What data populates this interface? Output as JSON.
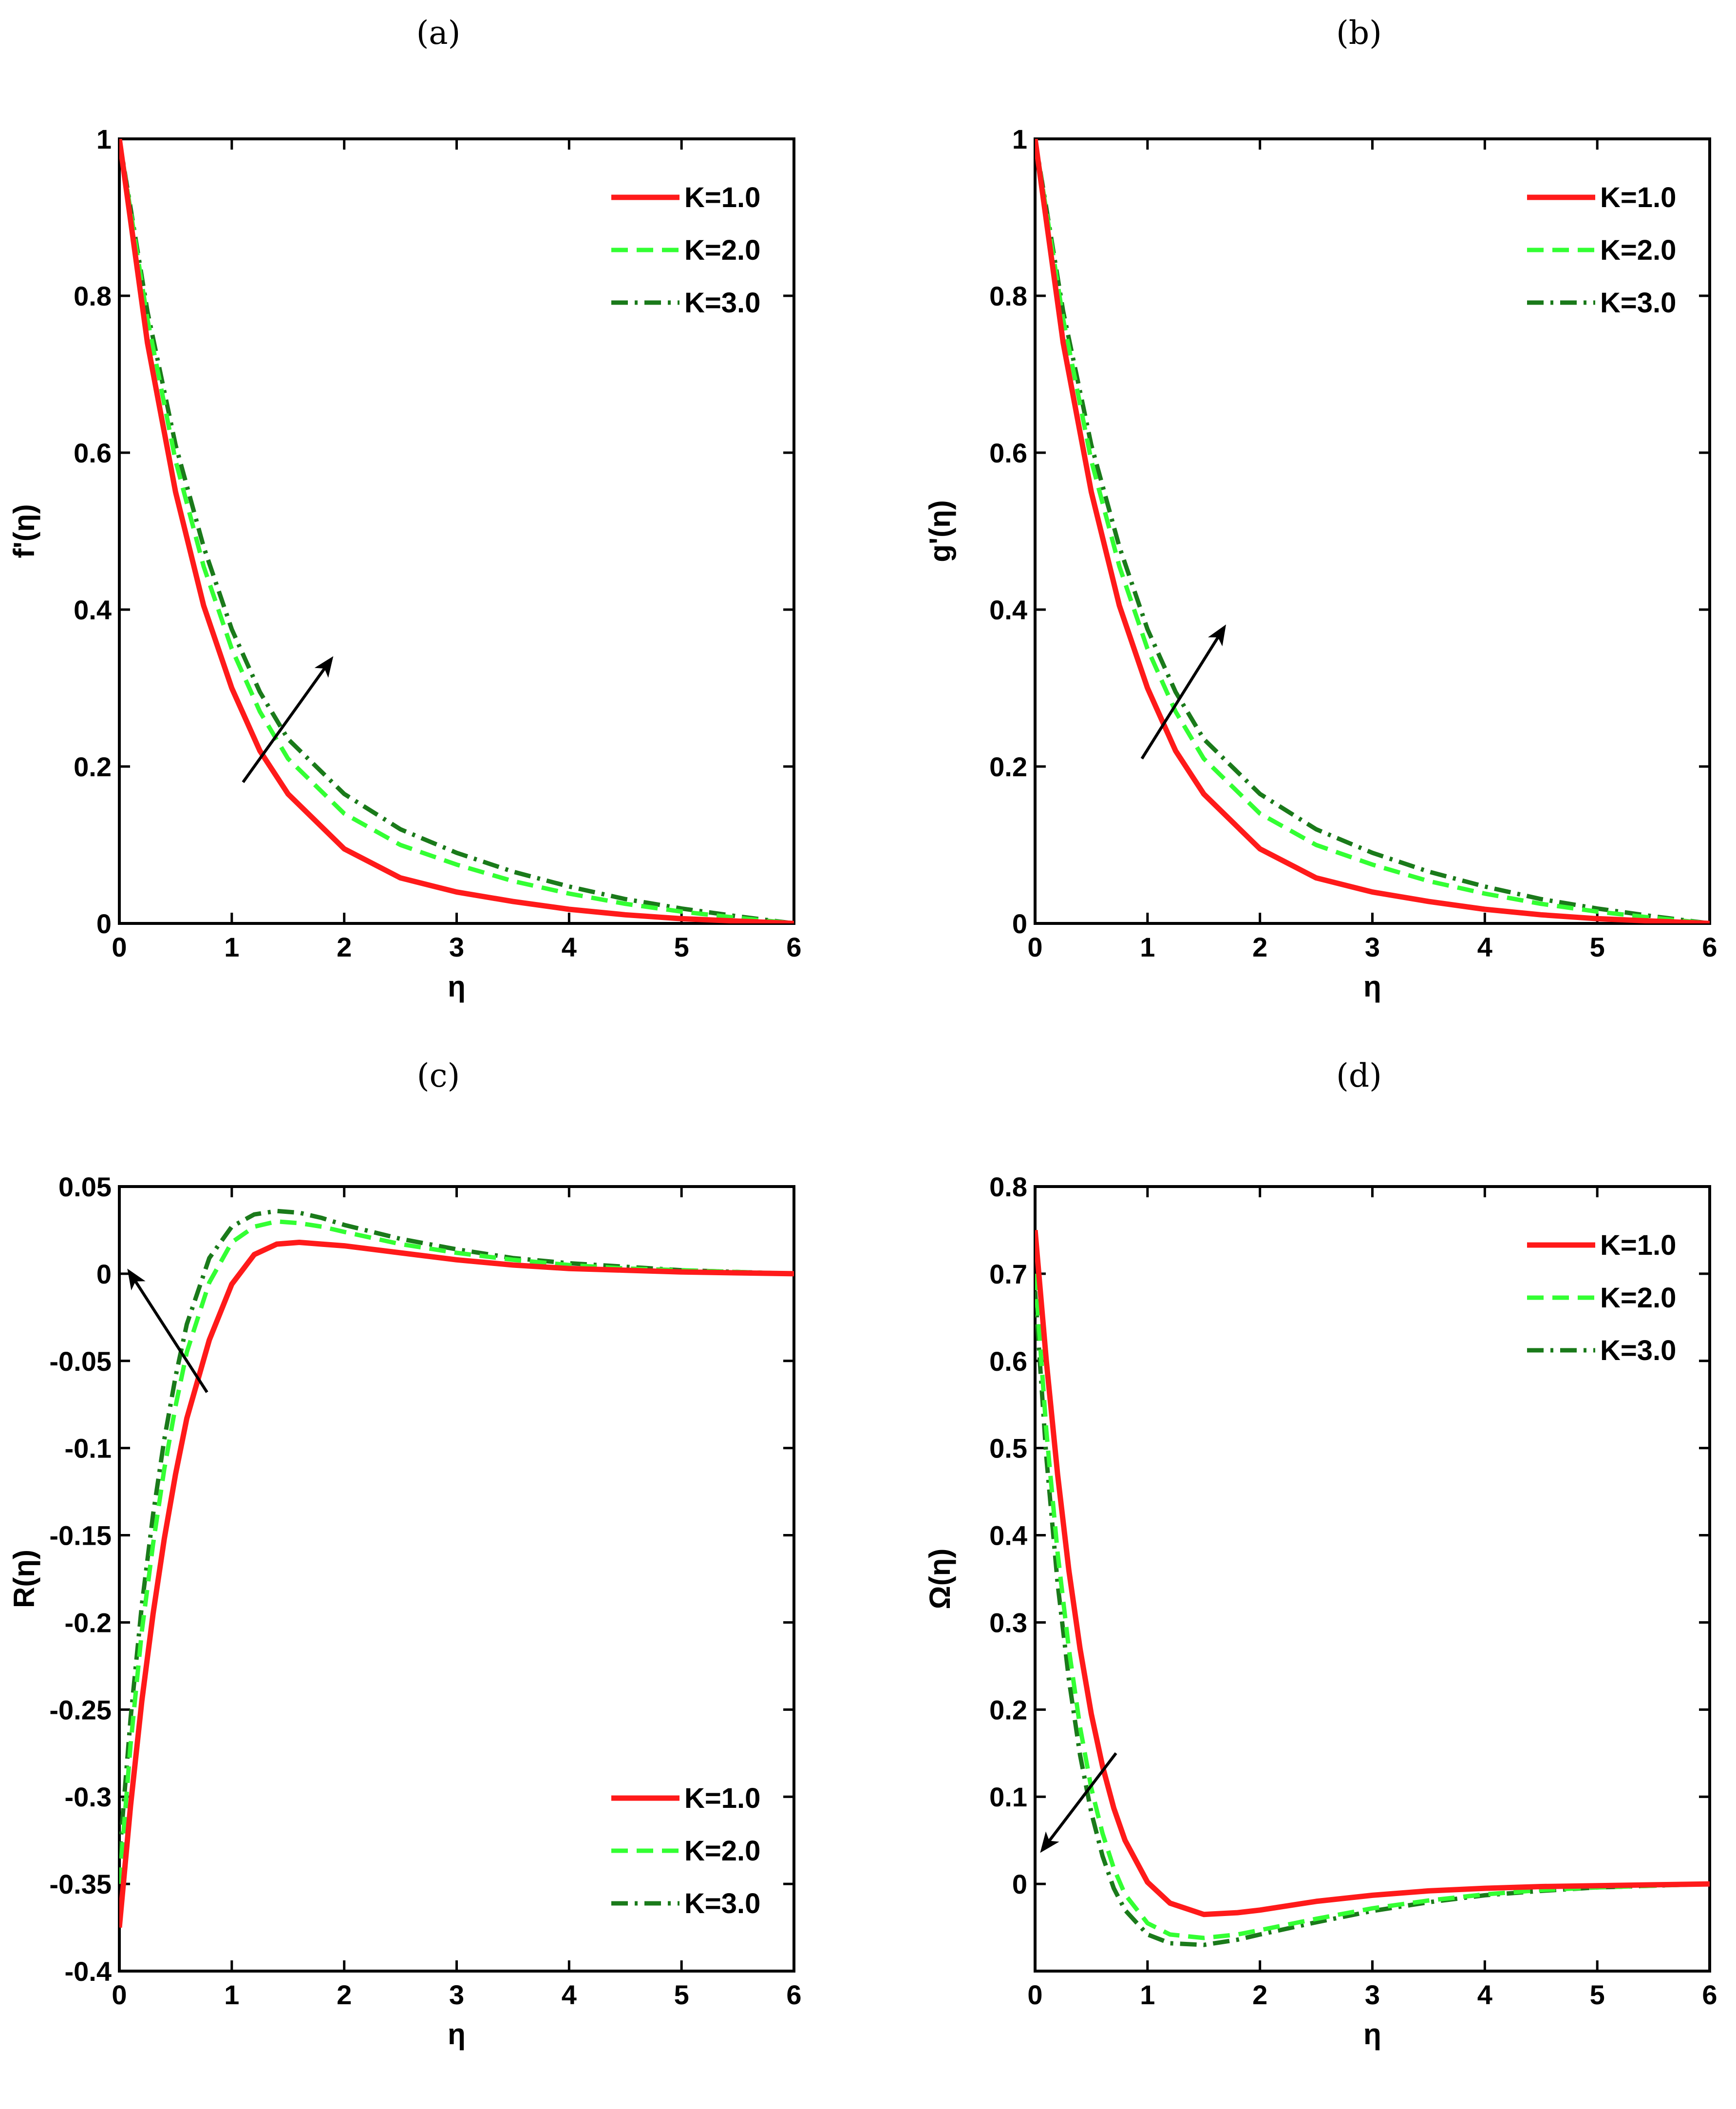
{
  "colors": {
    "k1": "#ff1a1a",
    "k2": "#33ff33",
    "k3": "#1a7a1a",
    "axis": "#000000"
  },
  "chart_data": [
    {
      "panel": "(a)",
      "type": "line",
      "ylabel": "f'(η)",
      "xlabel": "η",
      "xlim": [
        0,
        6
      ],
      "ylim": [
        0,
        1
      ],
      "xticks": [
        0,
        1,
        2,
        3,
        4,
        5,
        6
      ],
      "xtick_labels": [
        "0",
        "1",
        "2",
        "3",
        "4",
        "5",
        "6"
      ],
      "yticks": [
        0,
        0.2,
        0.4,
        0.6,
        0.8,
        1
      ],
      "ytick_labels": [
        "0",
        "0.2",
        "0.4",
        "0.6",
        "0.8",
        "1"
      ],
      "legend_position": "top-right",
      "arrow": {
        "from": [
          1.1,
          0.18
        ],
        "to": [
          1.85,
          0.33
        ]
      },
      "x": [
        0,
        0.25,
        0.5,
        0.75,
        1,
        1.25,
        1.5,
        2,
        2.5,
        3,
        3.5,
        4,
        4.5,
        5,
        5.5,
        6
      ],
      "series": [
        {
          "name": "K=1.0",
          "style": "solid",
          "values": [
            1,
            0.74,
            0.55,
            0.405,
            0.3,
            0.22,
            0.165,
            0.095,
            0.058,
            0.04,
            0.028,
            0.018,
            0.011,
            0.006,
            0.003,
            0
          ]
        },
        {
          "name": "K=2.0",
          "style": "dashed",
          "values": [
            1,
            0.77,
            0.59,
            0.455,
            0.35,
            0.27,
            0.21,
            0.14,
            0.1,
            0.075,
            0.054,
            0.038,
            0.025,
            0.015,
            0.007,
            0
          ]
        },
        {
          "name": "K=3.0",
          "style": "dashdot",
          "values": [
            1,
            0.78,
            0.61,
            0.48,
            0.375,
            0.295,
            0.235,
            0.165,
            0.12,
            0.09,
            0.066,
            0.047,
            0.031,
            0.019,
            0.009,
            0
          ]
        }
      ]
    },
    {
      "panel": "(b)",
      "type": "line",
      "ylabel": "g'(η)",
      "xlabel": "η",
      "xlim": [
        0,
        6
      ],
      "ylim": [
        0,
        1
      ],
      "xticks": [
        0,
        1,
        2,
        3,
        4,
        5,
        6
      ],
      "xtick_labels": [
        "0",
        "1",
        "2",
        "3",
        "4",
        "5",
        "6"
      ],
      "yticks": [
        0,
        0.2,
        0.4,
        0.6,
        0.8,
        1
      ],
      "ytick_labels": [
        "0",
        "0.2",
        "0.4",
        "0.6",
        "0.8",
        "1"
      ],
      "legend_position": "top-right",
      "arrow": {
        "from": [
          0.95,
          0.21
        ],
        "to": [
          1.65,
          0.37
        ]
      },
      "x": [
        0,
        0.25,
        0.5,
        0.75,
        1,
        1.25,
        1.5,
        2,
        2.5,
        3,
        3.5,
        4,
        4.5,
        5,
        5.5,
        6
      ],
      "series": [
        {
          "name": "K=1.0",
          "style": "solid",
          "values": [
            1,
            0.74,
            0.55,
            0.405,
            0.3,
            0.22,
            0.165,
            0.095,
            0.058,
            0.04,
            0.028,
            0.018,
            0.011,
            0.006,
            0.003,
            0
          ]
        },
        {
          "name": "K=2.0",
          "style": "dashed",
          "values": [
            1,
            0.77,
            0.59,
            0.455,
            0.35,
            0.27,
            0.21,
            0.14,
            0.1,
            0.075,
            0.054,
            0.038,
            0.025,
            0.015,
            0.007,
            0
          ]
        },
        {
          "name": "K=3.0",
          "style": "dashdot",
          "values": [
            1,
            0.78,
            0.61,
            0.48,
            0.375,
            0.295,
            0.235,
            0.165,
            0.12,
            0.09,
            0.066,
            0.047,
            0.031,
            0.019,
            0.009,
            0
          ]
        }
      ]
    },
    {
      "panel": "(c)",
      "type": "line",
      "ylabel": "R(η)",
      "xlabel": "η",
      "xlim": [
        0,
        6
      ],
      "ylim": [
        -0.4,
        0.05
      ],
      "xticks": [
        0,
        1,
        2,
        3,
        4,
        5,
        6
      ],
      "xtick_labels": [
        "0",
        "1",
        "2",
        "3",
        "4",
        "5",
        "6"
      ],
      "yticks": [
        -0.4,
        -0.35,
        -0.3,
        -0.25,
        -0.2,
        -0.15,
        -0.1,
        -0.05,
        0,
        0.05
      ],
      "ytick_labels": [
        "-0.4",
        "-0.35",
        "-0.3",
        "-0.25",
        "-0.2",
        "-0.15",
        "-0.1",
        "-0.05",
        "0",
        "0.05"
      ],
      "legend_position": "bottom-right",
      "arrow": {
        "from": [
          0.78,
          -0.068
        ],
        "to": [
          0.12,
          -0.002
        ]
      },
      "x": [
        0,
        0.1,
        0.2,
        0.3,
        0.4,
        0.5,
        0.6,
        0.8,
        1,
        1.2,
        1.4,
        1.6,
        1.8,
        2,
        2.5,
        3,
        3.5,
        4,
        4.5,
        5,
        5.5,
        6
      ],
      "series": [
        {
          "name": "K=1.0",
          "style": "solid",
          "values": [
            -0.375,
            -0.305,
            -0.245,
            -0.195,
            -0.152,
            -0.115,
            -0.083,
            -0.038,
            -0.006,
            0.011,
            0.017,
            0.018,
            0.017,
            0.016,
            0.012,
            0.008,
            0.005,
            0.003,
            0.002,
            0.001,
            0.0005,
            0
          ]
        },
        {
          "name": "K=2.0",
          "style": "dashed",
          "values": [
            -0.35,
            -0.27,
            -0.205,
            -0.155,
            -0.112,
            -0.076,
            -0.045,
            -0.005,
            0.018,
            0.027,
            0.03,
            0.029,
            0.027,
            0.024,
            0.017,
            0.012,
            0.008,
            0.005,
            0.003,
            0.002,
            0.001,
            0
          ]
        },
        {
          "name": "K=3.0",
          "style": "dashdot",
          "values": [
            -0.335,
            -0.255,
            -0.19,
            -0.138,
            -0.095,
            -0.059,
            -0.029,
            0.009,
            0.027,
            0.034,
            0.036,
            0.035,
            0.032,
            0.028,
            0.02,
            0.014,
            0.009,
            0.006,
            0.004,
            0.002,
            0.001,
            0
          ]
        }
      ]
    },
    {
      "panel": "(d)",
      "type": "line",
      "ylabel": "Ω(η)",
      "xlabel": "η",
      "xlim": [
        0,
        6
      ],
      "ylim": [
        -0.1,
        0.8
      ],
      "xticks": [
        0,
        1,
        2,
        3,
        4,
        5,
        6
      ],
      "xtick_labels": [
        "0",
        "1",
        "2",
        "3",
        "4",
        "5",
        "6"
      ],
      "yticks": [
        0,
        0.1,
        0.2,
        0.3,
        0.4,
        0.5,
        0.6,
        0.7,
        0.8
      ],
      "ytick_labels": [
        "0",
        "0.1",
        "0.2",
        "0.3",
        "0.4",
        "0.5",
        "0.6",
        "0.7",
        "0.8"
      ],
      "legend_position": "top-right",
      "arrow": {
        "from": [
          0.72,
          0.15
        ],
        "to": [
          0.1,
          0.045
        ]
      },
      "x": [
        0,
        0.1,
        0.2,
        0.3,
        0.4,
        0.5,
        0.6,
        0.7,
        0.8,
        1,
        1.2,
        1.5,
        1.8,
        2,
        2.5,
        3,
        3.5,
        4,
        4.5,
        5,
        5.5,
        6
      ],
      "series": [
        {
          "name": "K=1.0",
          "style": "solid",
          "values": [
            0.75,
            0.6,
            0.47,
            0.36,
            0.27,
            0.195,
            0.135,
            0.087,
            0.05,
            0.002,
            -0.022,
            -0.035,
            -0.033,
            -0.03,
            -0.02,
            -0.013,
            -0.008,
            -0.005,
            -0.003,
            -0.002,
            -0.001,
            0
          ]
        },
        {
          "name": "K=2.0",
          "style": "dashed",
          "values": [
            0.7,
            0.52,
            0.38,
            0.27,
            0.18,
            0.11,
            0.058,
            0.018,
            -0.012,
            -0.045,
            -0.058,
            -0.062,
            -0.058,
            -0.053,
            -0.04,
            -0.028,
            -0.019,
            -0.012,
            -0.007,
            -0.004,
            -0.002,
            0
          ]
        },
        {
          "name": "K=3.0",
          "style": "dashdot",
          "values": [
            0.68,
            0.49,
            0.345,
            0.235,
            0.148,
            0.082,
            0.032,
            -0.005,
            -0.03,
            -0.058,
            -0.068,
            -0.07,
            -0.064,
            -0.058,
            -0.044,
            -0.031,
            -0.021,
            -0.013,
            -0.008,
            -0.004,
            -0.002,
            0
          ]
        }
      ]
    }
  ]
}
